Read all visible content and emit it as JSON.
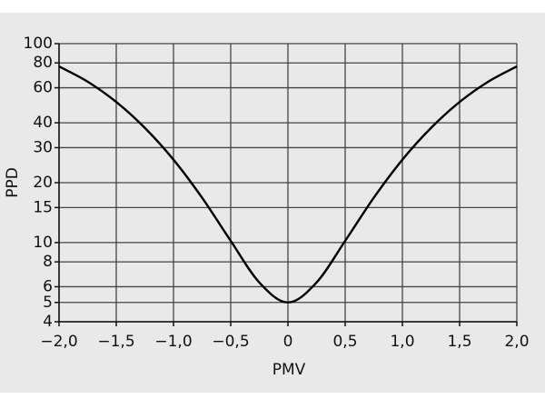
{
  "chart_data": {
    "type": "line",
    "x_label": "PMV",
    "y_label": "PPD",
    "x": [
      -2,
      -1.75,
      -1.5,
      -1.25,
      -1,
      -0.75,
      -0.5,
      -0.25,
      0,
      0.25,
      0.5,
      0.75,
      1,
      1.25,
      1.5,
      1.75,
      2
    ],
    "series": [
      {
        "color": "#000000",
        "values": [
          76.8,
          64.4,
          50.9,
          37.7,
          26.1,
          16.8,
          10.2,
          6.3,
          5,
          6.3,
          10.2,
          16.8,
          26.1,
          37.7,
          50.9,
          64.4,
          76.8
        ]
      }
    ],
    "xlim": [
      -2,
      2
    ],
    "xticks": [
      {
        "value": -2,
        "label": "−2,0"
      },
      {
        "value": -1.5,
        "label": "−1,5"
      },
      {
        "value": -1,
        "label": "−1,0"
      },
      {
        "value": -0.5,
        "label": "−0,5"
      },
      0,
      {
        "value": 0.5,
        "label": "0,5"
      },
      {
        "value": 1,
        "label": "1,0"
      },
      {
        "value": 1.5,
        "label": "1,5"
      },
      {
        "value": 2,
        "label": "2,0"
      }
    ],
    "ylim": [
      4,
      100
    ],
    "y_log": true,
    "yticks": [
      4,
      5,
      6,
      8,
      10,
      15,
      20,
      30,
      40,
      60,
      80,
      100
    ],
    "grid": true
  }
}
